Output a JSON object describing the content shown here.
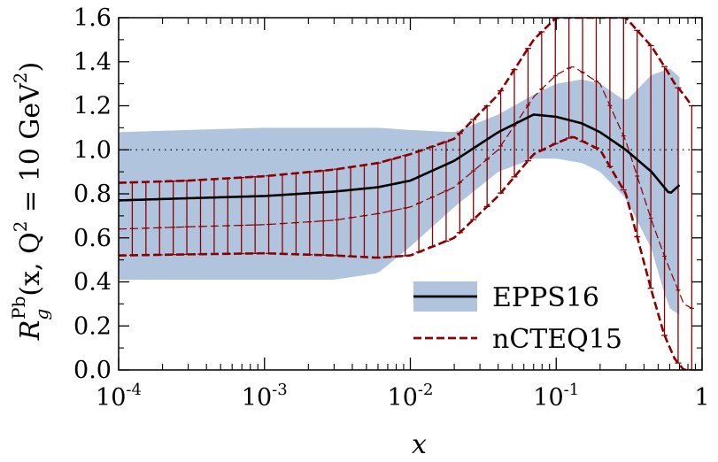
{
  "chart_data": {
    "type": "line",
    "xscale": "log",
    "xlim": [
      0.0001,
      1
    ],
    "ylim": [
      0.0,
      1.6
    ],
    "xlabel": "x",
    "ylabel": "R_g^Pb(x, Q² = 10 GeV²)",
    "ylabel_parts": {
      "R": "R",
      "sub": "g",
      "sup": "Pb",
      "args": "(x, Q",
      "sq": "2",
      "eq": " = 10 GeV",
      "sq2": "2",
      "close": ")"
    },
    "x_ticks": [
      {
        "value": 0.0001,
        "base": "10",
        "exp": "-4"
      },
      {
        "value": 0.001,
        "base": "10",
        "exp": "-3"
      },
      {
        "value": 0.01,
        "base": "10",
        "exp": "-2"
      },
      {
        "value": 0.1,
        "base": "10",
        "exp": "-1"
      },
      {
        "value": 1,
        "base": "1",
        "exp": ""
      }
    ],
    "y_ticks": [
      "0.0",
      "0.2",
      "0.4",
      "0.6",
      "0.8",
      "1.0",
      "1.2",
      "1.4",
      "1.6"
    ],
    "reference_line": 1.0,
    "legend_position": "bottom-right",
    "colors": {
      "epps_band": "#b0c4de",
      "epps_line": "#000000",
      "ncteq": "#8b0000"
    },
    "series": [
      {
        "name": "EPPS16",
        "style": "solid-with-band",
        "x": [
          0.0001,
          0.0003,
          0.001,
          0.003,
          0.006,
          0.01,
          0.02,
          0.04,
          0.07,
          0.1,
          0.15,
          0.2,
          0.3,
          0.45,
          0.55,
          0.6,
          0.7
        ],
        "central": [
          0.77,
          0.78,
          0.79,
          0.81,
          0.83,
          0.86,
          0.95,
          1.08,
          1.16,
          1.15,
          1.12,
          1.08,
          1.0,
          0.9,
          0.83,
          0.8,
          0.84
        ],
        "lower": [
          0.41,
          0.41,
          0.41,
          0.41,
          0.44,
          0.56,
          0.74,
          0.9,
          0.96,
          0.96,
          0.94,
          0.9,
          0.78,
          0.55,
          0.35,
          0.28,
          0.25
        ],
        "upper": [
          1.08,
          1.09,
          1.1,
          1.1,
          1.1,
          1.09,
          1.08,
          1.16,
          1.25,
          1.3,
          1.32,
          1.3,
          1.22,
          1.34,
          1.36,
          1.37,
          1.33
        ]
      },
      {
        "name": "nCTEQ15",
        "style": "dashed-with-errorbars",
        "x": [
          0.0001,
          0.0003,
          0.001,
          0.003,
          0.006,
          0.01,
          0.02,
          0.04,
          0.07,
          0.1,
          0.13,
          0.2,
          0.3,
          0.45,
          0.55,
          0.65,
          0.75,
          0.85
        ],
        "central": [
          0.64,
          0.65,
          0.66,
          0.68,
          0.71,
          0.74,
          0.83,
          1.0,
          1.24,
          1.34,
          1.38,
          1.3,
          1.04,
          0.68,
          0.52,
          0.4,
          0.3,
          0.28
        ],
        "lower": [
          0.52,
          0.525,
          0.53,
          0.52,
          0.51,
          0.52,
          0.6,
          0.79,
          0.98,
          1.03,
          1.06,
          1.0,
          0.8,
          0.36,
          0.16,
          0.05,
          0.0,
          0.0
        ],
        "upper": [
          0.85,
          0.86,
          0.88,
          0.91,
          0.94,
          0.98,
          1.05,
          1.25,
          1.5,
          1.6,
          1.6,
          1.6,
          1.6,
          1.47,
          1.38,
          1.3,
          1.25,
          1.2
        ]
      }
    ]
  }
}
